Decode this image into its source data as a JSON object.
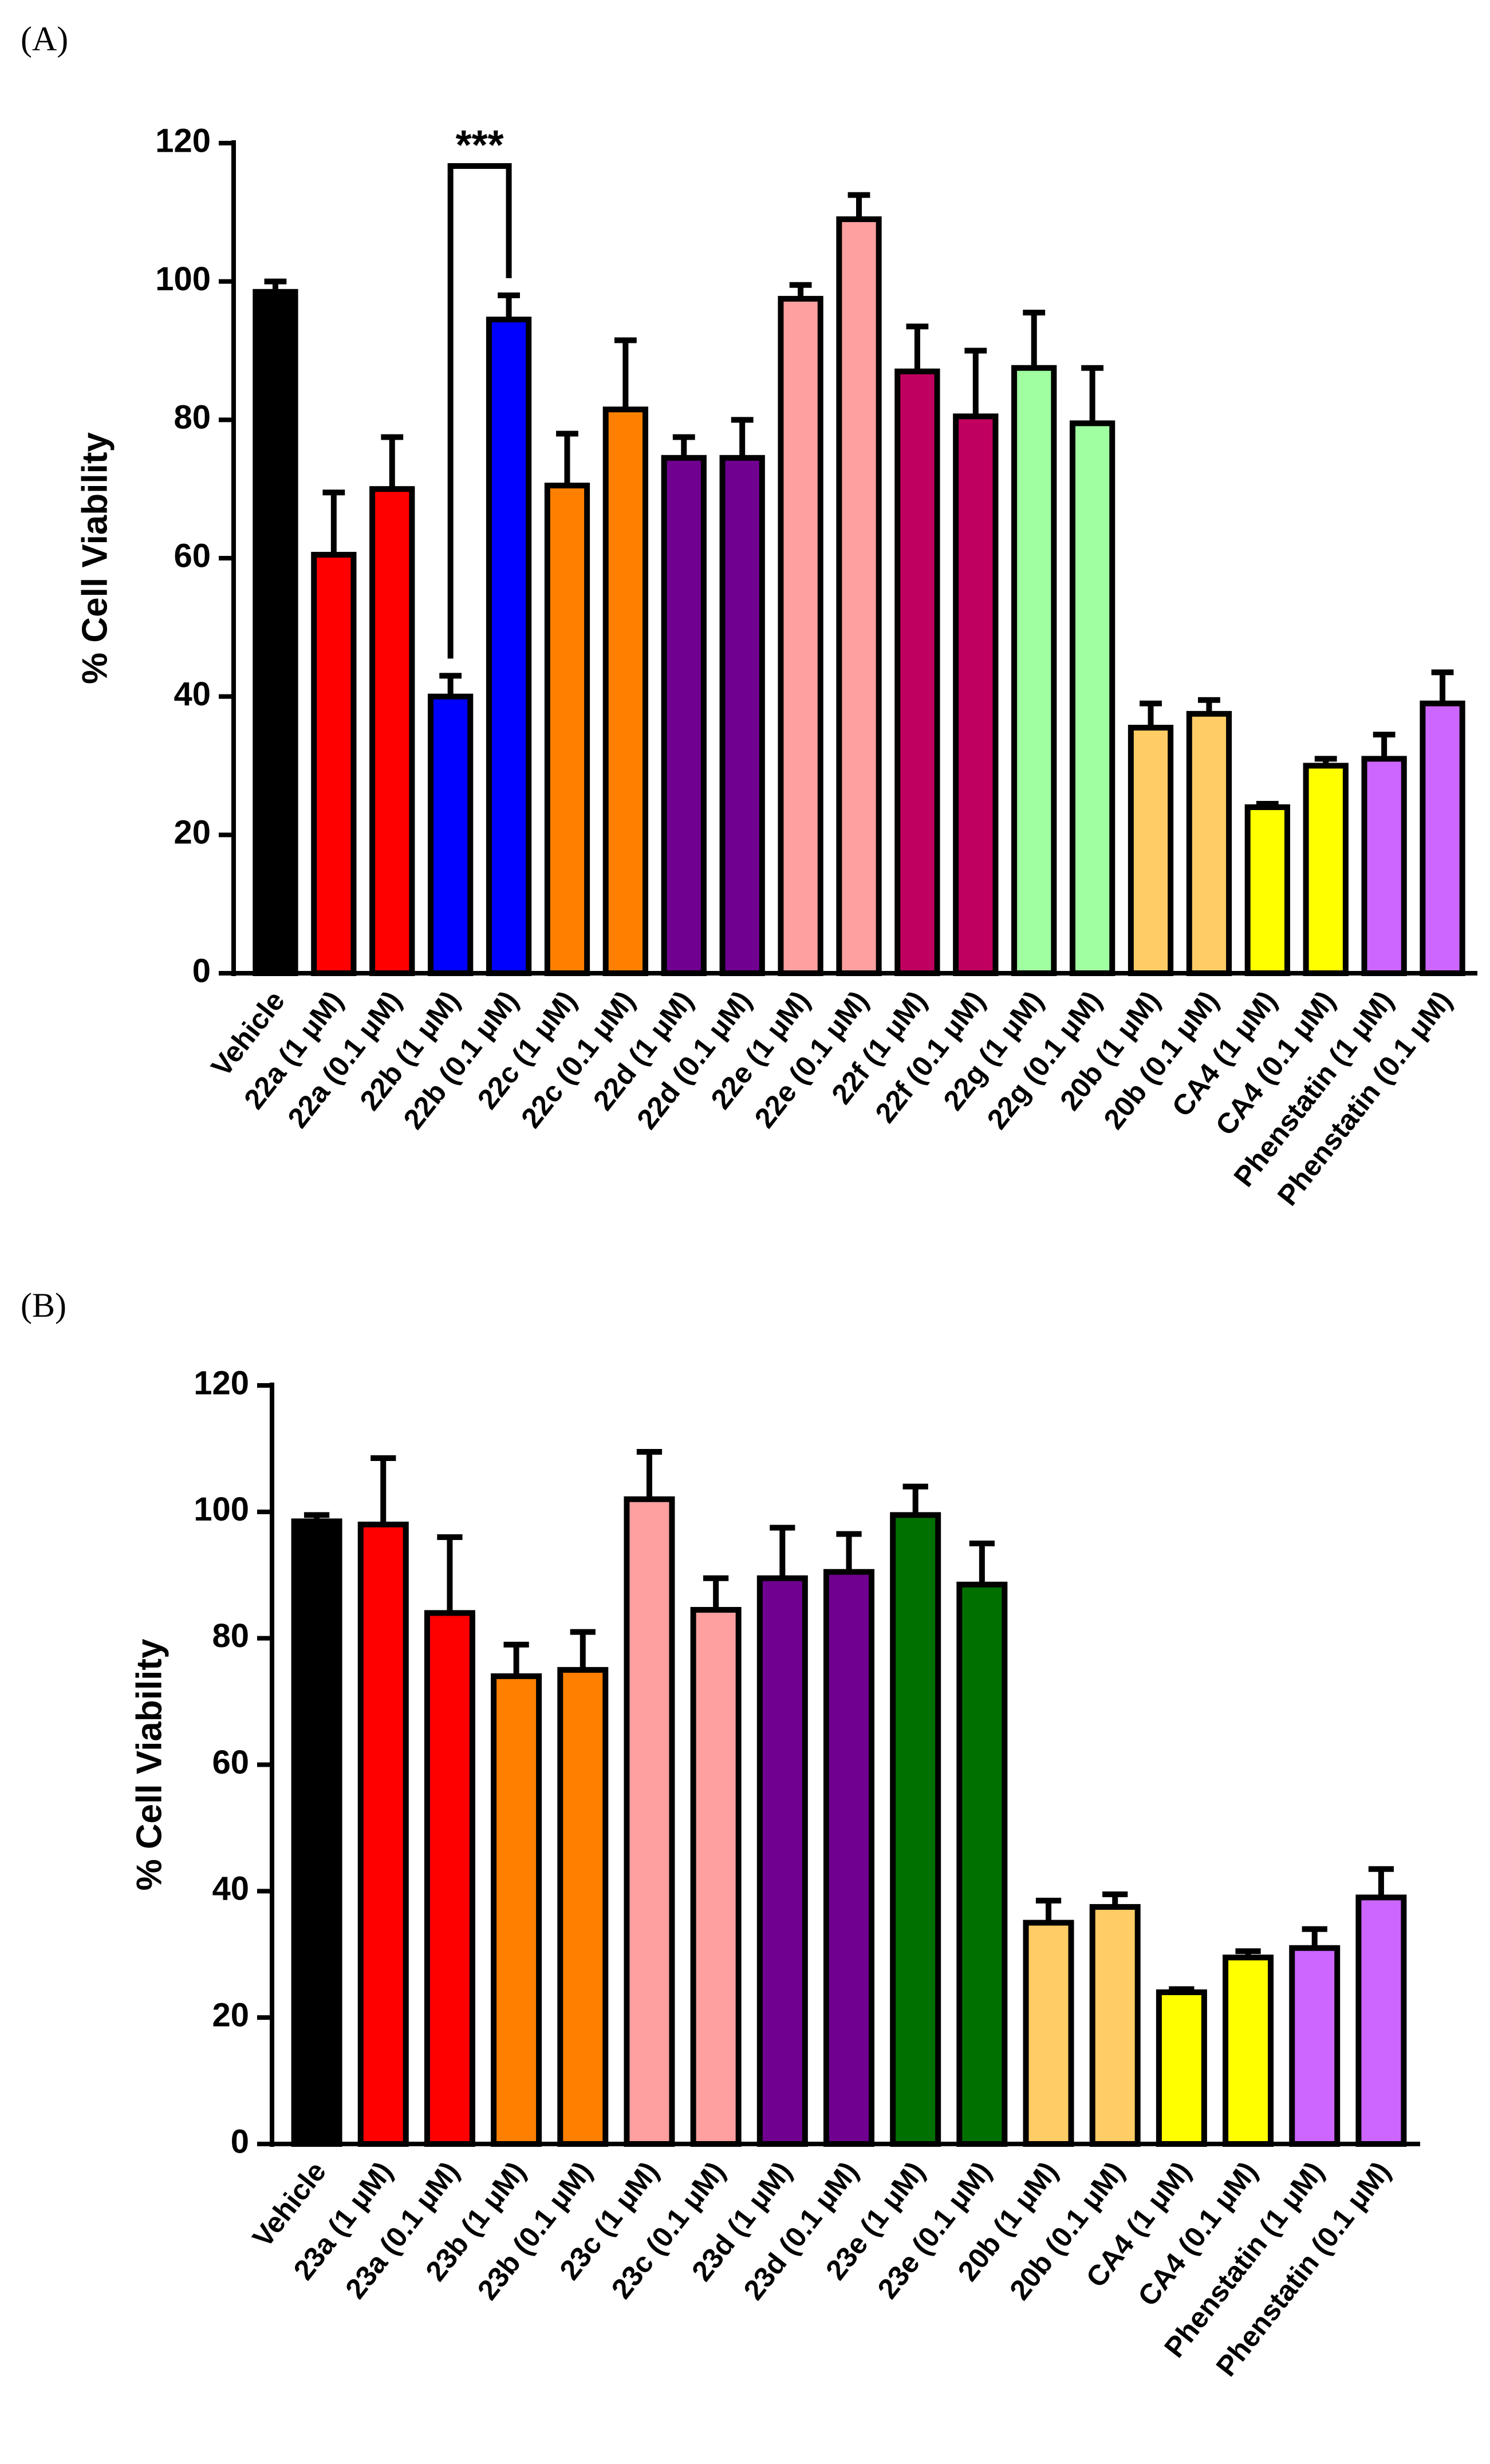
{
  "charts": [
    {
      "panel_label": "(A)",
      "significance": {
        "label": "***",
        "from": 3,
        "to": 4
      },
      "chart_data": {
        "type": "bar",
        "title": "",
        "xlabel": "",
        "ylabel": "% Cell Viability",
        "ylim": [
          0,
          120
        ],
        "yticks": [
          0,
          20,
          40,
          60,
          80,
          100,
          120
        ],
        "grid": false,
        "categories": [
          "Vehicle",
          "22a (1 μM)",
          "22a (0.1 μM)",
          "22b (1 μM)",
          "22b (0.1 μM)",
          "22c (1 μM)",
          "22c (0.1 μM)",
          "22d (1 μM)",
          "22d (0.1 μM)",
          "22e (1 μM)",
          "22e (0.1 μM)",
          "22f (1 μM)",
          "22f (0.1 μM)",
          "22g (1 μM)",
          "22g (0.1 μM)",
          "20b (1 μM)",
          "20b (0.1 μM)",
          "CA4 (1 μM)",
          "CA4 (0.1 μM)",
          "Phenstatin (1 μM)",
          "Phenstatin (0.1 μM)"
        ],
        "values": [
          98.5,
          60.5,
          70,
          40,
          94.5,
          70.5,
          81.5,
          74.5,
          74.5,
          97.5,
          109,
          87,
          80.5,
          87.5,
          79.5,
          35.5,
          37.5,
          24,
          30,
          31,
          39
        ],
        "errors": [
          1.5,
          9,
          7.5,
          3,
          3.5,
          7.5,
          10,
          3,
          5.5,
          2,
          3.5,
          6.5,
          9.5,
          8,
          8,
          3.5,
          2,
          0.5,
          1,
          3.5,
          4.5
        ],
        "colors": [
          "#000000",
          "#ff0000",
          "#ff0000",
          "#0000ff",
          "#0000ff",
          "#ff8000",
          "#ff8000",
          "#700090",
          "#700090",
          "#ffa0a0",
          "#ffa0a0",
          "#c00060",
          "#c00060",
          "#a0ffa0",
          "#a0ffa0",
          "#ffcc66",
          "#ffcc66",
          "#ffff00",
          "#ffff00",
          "#cc66ff",
          "#cc66ff"
        ]
      }
    },
    {
      "panel_label": "(B)",
      "significance": null,
      "chart_data": {
        "type": "bar",
        "title": "",
        "xlabel": "",
        "ylabel": "% Cell Viability",
        "ylim": [
          0,
          120
        ],
        "yticks": [
          0,
          20,
          40,
          60,
          80,
          100,
          120
        ],
        "grid": false,
        "categories": [
          "Vehicle",
          "23a (1 μM)",
          "23a (0.1 μM)",
          "23b (1 μM)",
          "23b (0.1 μM)",
          "23c (1 μM)",
          "23c (0.1 μM)",
          "23d (1 μM)",
          "23d (0.1 μM)",
          "23e (1 μM)",
          "23e (0.1 μM)",
          "20b (1 μM)",
          "20b (0.1 μM)",
          "CA4 (1 μM)",
          "CA4 (0.1 μM)",
          "Phenstatin (1 μM)",
          "Phenstatin (0.1 μM)"
        ],
        "values": [
          98.5,
          98,
          84,
          74,
          75,
          102,
          84.5,
          89.5,
          90.5,
          99.5,
          88.5,
          35,
          37.5,
          24,
          29.5,
          31,
          39
        ],
        "errors": [
          1,
          10.5,
          12,
          5,
          6,
          7.5,
          5,
          8,
          6,
          4.5,
          6.5,
          3.5,
          2,
          0.5,
          1,
          3,
          4.5
        ],
        "colors": [
          "#000000",
          "#ff0000",
          "#ff0000",
          "#ff8000",
          "#ff8000",
          "#ffa0a0",
          "#ffa0a0",
          "#700090",
          "#700090",
          "#007000",
          "#007000",
          "#ffcc66",
          "#ffcc66",
          "#ffff00",
          "#ffff00",
          "#cc66ff",
          "#cc66ff"
        ]
      }
    }
  ]
}
